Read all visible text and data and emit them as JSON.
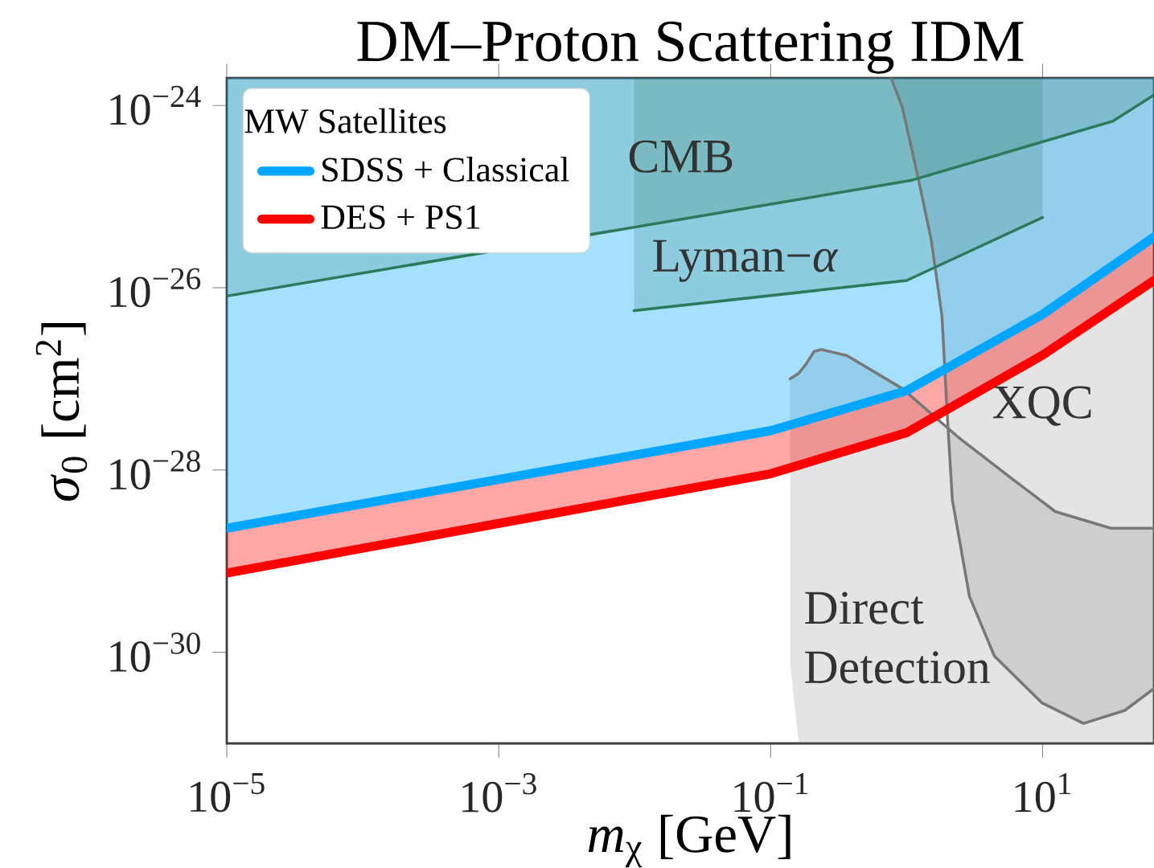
{
  "chart_data": {
    "type": "line",
    "title": "DM–Proton Scattering IDM",
    "xlabel": "*m*$_{χ}$ [GeV]",
    "ylabel": "*σ*$_{0}$ [cm$^{2}$]",
    "legend_title": "MW Satellites",
    "legend": "top left",
    "log": "xy",
    "grid": false,
    "xlim": [
      1e-05,
      66
    ],
    "ylim": [
      1e-31,
      2e-24
    ],
    "xticks": [
      {
        "value": 1e-05,
        "label": "10$^{−5}$"
      },
      {
        "value": 0.001,
        "label": "10$^{−3}$"
      },
      {
        "value": 0.1,
        "label": "10$^{−1}$"
      },
      {
        "value": 10,
        "label": "10$^{1}$"
      }
    ],
    "yticks": [
      {
        "value": 1e-24,
        "label": "10$^{−24}$"
      },
      {
        "value": 1e-26,
        "label": "10$^{−26}$"
      },
      {
        "value": 1e-28,
        "label": "10$^{−28}$"
      },
      {
        "value": 1e-30,
        "label": "10$^{−30}$"
      }
    ],
    "series": [
      {
        "color": "#787878",
        "x": [
          0.139,
          0.161,
          0.182,
          0.209,
          0.236,
          0.365,
          0.933,
          2.39,
          6.12,
          12.4,
          31.8,
          66
        ],
        "values": [
          1e-27,
          1.15e-27,
          1.45e-27,
          2e-27,
          2.1e-27,
          1.8e-27,
          7.8e-28,
          2.3e-28,
          7.8e-29,
          3.5e-29,
          2.3e-29,
          2.3e-29
        ],
        "lower": [
          7.6e-31,
          1e-31,
          1e-31,
          1e-31,
          1e-31,
          1e-31,
          1e-31,
          1e-31,
          1e-31,
          1e-31,
          1e-31,
          1e-31
        ],
        "upper": [
          1e-27,
          1.15e-27,
          1.45e-27,
          2e-27,
          2.1e-27,
          1.8e-27,
          7.8e-28,
          2.3e-28,
          7.8e-29,
          3.5e-29,
          2.3e-29,
          2.3e-29
        ]
      },
      {
        "color": "#787878",
        "x": [
          0.77,
          0.93,
          1.21,
          1.52,
          1.82,
          1.98,
          2.17,
          2.9,
          4.42,
          9.86,
          20.0,
          40.2,
          66
        ],
        "values": [
          2e-24,
          9.5e-25,
          1.66e-25,
          3.3e-26,
          4.9e-27,
          4.6e-28,
          4.7e-29,
          4.1e-30,
          9.1e-31,
          2.8e-31,
          1.66e-31,
          2.3e-31,
          4e-31
        ],
        "lower": [
          2e-24,
          9.5e-25,
          1.66e-25,
          3.3e-26,
          4.9e-27,
          4.6e-28,
          4.7e-29,
          4.1e-30,
          9.1e-31,
          2.8e-31,
          1.66e-31,
          2.3e-31,
          4e-31
        ],
        "upper": [
          2e-24,
          2e-24,
          2e-24,
          2e-24,
          2e-24,
          2e-24,
          2e-24,
          2e-24,
          2e-24,
          2e-24,
          2e-24,
          2e-24,
          2e-24
        ]
      },
      {
        "name": "SDSS + Classical",
        "color": "#00a6ff",
        "x": [
          1e-05,
          0.1,
          1,
          10,
          66
        ],
        "values": [
          2.3e-29,
          2.7e-28,
          7.4e-28,
          5.1e-27,
          3.6e-26
        ],
        "lower": [
          2.3e-29,
          2.7e-28,
          7.4e-28,
          5.1e-27,
          3.6e-26
        ],
        "upper": [
          2e-24,
          2e-24,
          2e-24,
          2e-24,
          2e-24
        ]
      },
      {
        "name": "DES + PS1",
        "color": "#ff0000",
        "x": [
          1e-05,
          0.1,
          1,
          10,
          66
        ],
        "values": [
          7.4e-30,
          9.1e-29,
          2.57e-28,
          1.82e-27,
          1.2e-26
        ],
        "lower": [
          7.4e-30,
          9.1e-29,
          2.57e-28,
          1.82e-27,
          1.2e-26
        ],
        "upper": [
          2.3e-29,
          2.7e-28,
          7.4e-28,
          5.1e-27,
          3.6e-26
        ]
      },
      {
        "color": "#2b7a5b",
        "x": [
          1e-05,
          1.07,
          32.7,
          66
        ],
        "values": [
          8.1e-27,
          1.5e-25,
          6.7e-25,
          1.3e-24
        ],
        "lower": [
          8.1e-27,
          1.5e-25,
          6.7e-25,
          1.3e-24
        ],
        "upper": [
          2e-24,
          2e-24,
          2e-24,
          2e-24
        ]
      },
      {
        "color": "#2b7a5b",
        "x": [
          0.0099,
          1,
          10
        ],
        "values": [
          5.6e-27,
          1.2e-26,
          5.9e-26
        ],
        "lower": [
          5.6e-27,
          1.2e-26,
          5.9e-26
        ],
        "upper": [
          2e-24,
          2e-24,
          2e-24
        ]
      }
    ],
    "annotations": [
      "CMB",
      "Lyman−*α*",
      "XQC",
      "Direct Detection"
    ]
  }
}
